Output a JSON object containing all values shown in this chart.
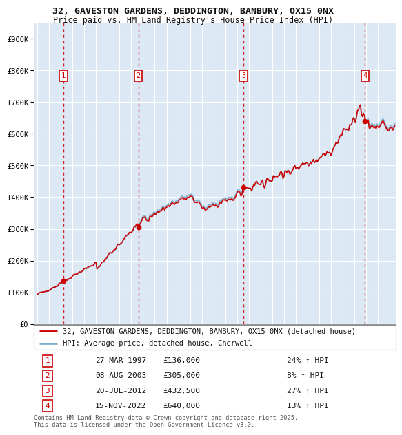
{
  "title_line1": "32, GAVESTON GARDENS, DEDDINGTON, BANBURY, OX15 0NX",
  "title_line2": "Price paid vs. HM Land Registry's House Price Index (HPI)",
  "ylim": [
    0,
    950000
  ],
  "yticks": [
    0,
    100000,
    200000,
    300000,
    400000,
    500000,
    600000,
    700000,
    800000,
    900000
  ],
  "ytick_labels": [
    "£0",
    "£100K",
    "£200K",
    "£300K",
    "£400K",
    "£500K",
    "£600K",
    "£700K",
    "£800K",
    "£900K"
  ],
  "plot_bg_color": "#dce9f5",
  "grid_color": "#ffffff",
  "sale_color": "#cc0000",
  "hpi_color": "#7aadcc",
  "vline_color": "#cc0000",
  "transactions": [
    {
      "date_x": 1997.22,
      "price": 136000,
      "label": "1"
    },
    {
      "date_x": 2003.6,
      "price": 305000,
      "label": "2"
    },
    {
      "date_x": 2012.55,
      "price": 432500,
      "label": "3"
    },
    {
      "date_x": 2022.88,
      "price": 640000,
      "label": "4"
    }
  ],
  "table_data": [
    [
      "1",
      "27-MAR-1997",
      "£136,000",
      "24% ↑ HPI"
    ],
    [
      "2",
      "08-AUG-2003",
      "£305,000",
      "8% ↑ HPI"
    ],
    [
      "3",
      "20-JUL-2012",
      "£432,500",
      "27% ↑ HPI"
    ],
    [
      "4",
      "15-NOV-2022",
      "£640,000",
      "13% ↑ HPI"
    ]
  ],
  "legend_sale": "32, GAVESTON GARDENS, DEDDINGTON, BANBURY, OX15 0NX (detached house)",
  "legend_hpi": "HPI: Average price, detached house, Cherwell",
  "footnote": "Contains HM Land Registry data © Crown copyright and database right 2025.\nThis data is licensed under the Open Government Licence v3.0.",
  "xmin": 1994.7,
  "xmax": 2025.5
}
